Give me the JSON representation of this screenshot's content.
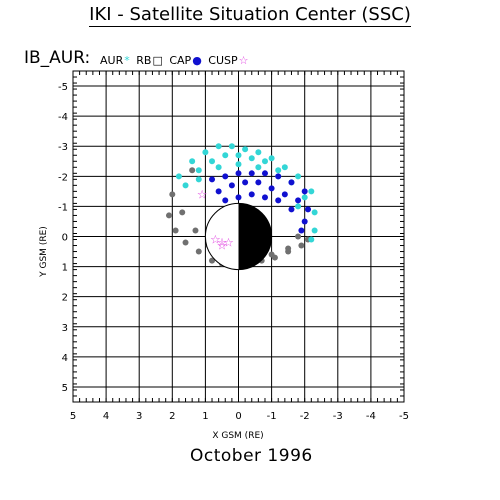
{
  "header": {
    "title": "IKI - Satellite Situation Center (SSC)",
    "plot_name": "IB_AUR:",
    "date": "October   1996"
  },
  "legend": [
    {
      "label": "AUR",
      "symbol": "*",
      "color": "#33d6d6"
    },
    {
      "label": "RB",
      "symbol": "□",
      "color": "#000000"
    },
    {
      "label": "CAP",
      "symbol": "●",
      "color": "#1010d0"
    },
    {
      "label": "CUSP",
      "symbol": "☆",
      "color": "#e040e0"
    }
  ],
  "chart_data": {
    "type": "scatter",
    "title": "IKI - Satellite Situation Center (SSC)",
    "xlabel": "X GSM (RE)",
    "ylabel": "Y GSM (RE)",
    "xlim": [
      5,
      -5
    ],
    "ylim": [
      -5.5,
      5.5
    ],
    "x_ticks": [
      5,
      4,
      3,
      2,
      1,
      0,
      -1,
      -2,
      -3,
      -4,
      -5
    ],
    "x_tick_labels": [
      "5",
      "4",
      "3",
      "2",
      "1",
      "0",
      "-1",
      "-2",
      "-3",
      "-4",
      "-5"
    ],
    "y_ticks": [
      -5,
      -4,
      -3,
      -2,
      -1,
      0,
      1,
      2,
      3,
      4,
      5
    ],
    "y_tick_labels": [
      "-5",
      "-4",
      "-3",
      "-2",
      "-1",
      "0",
      "1",
      "2",
      "3",
      "4",
      "5"
    ],
    "grid": true,
    "earth_radius": 1,
    "series": [
      {
        "name": "AUR",
        "color": "#33d6d6",
        "marker": "dot",
        "x": [
          1.8,
          1.4,
          1.0,
          0.6,
          0.2,
          -0.2,
          -0.6,
          -1.0,
          -1.4,
          -1.8,
          -2.2,
          -2.3,
          -2.3,
          1.6,
          1.2,
          0.8,
          0.4,
          0.0,
          -0.4,
          -0.8,
          -1.2,
          -1.6,
          -2.0,
          1.2,
          0.6,
          0.0,
          -0.6,
          -1.2,
          -1.8,
          -2.2
        ],
        "y": [
          -2.0,
          -2.5,
          -2.8,
          -3.0,
          -3.0,
          -2.9,
          -2.8,
          -2.6,
          -2.3,
          -2.0,
          -1.5,
          -0.8,
          -0.2,
          -1.7,
          -2.2,
          -2.5,
          -2.7,
          -2.7,
          -2.6,
          -2.5,
          -2.2,
          -1.8,
          -1.3,
          -1.9,
          -2.3,
          -2.4,
          -2.3,
          -2.0,
          -1.0,
          0.1
        ]
      },
      {
        "name": "RB",
        "color": "#707070",
        "marker": "dot",
        "x": [
          1.4,
          2.0,
          2.1,
          1.9,
          1.6,
          1.2,
          0.8,
          0.5,
          0.1,
          -0.3,
          -0.7,
          -1.1,
          -1.5,
          -1.9,
          -2.1,
          1.7,
          1.3,
          0.9,
          0.4,
          0.0,
          -0.5,
          -1.0,
          -1.5,
          -1.8
        ],
        "y": [
          -2.2,
          -1.4,
          -0.7,
          -0.2,
          0.2,
          0.5,
          0.8,
          0.9,
          0.9,
          0.9,
          0.8,
          0.7,
          0.5,
          0.3,
          0.1,
          -0.8,
          -0.2,
          0.3,
          0.6,
          0.7,
          0.7,
          0.6,
          0.4,
          0.0
        ]
      },
      {
        "name": "CAP",
        "color": "#1010d0",
        "marker": "dot",
        "x": [
          0.8,
          0.4,
          0.0,
          -0.4,
          -0.8,
          -1.2,
          -1.6,
          -2.0,
          -2.1,
          0.6,
          0.2,
          -0.2,
          -0.6,
          -1.0,
          -1.4,
          -1.8,
          -2.0,
          0.4,
          0.0,
          -0.4,
          -0.8,
          -1.2,
          -1.6,
          -1.9
        ],
        "y": [
          -1.9,
          -2.0,
          -2.1,
          -2.1,
          -2.1,
          -2.0,
          -1.8,
          -1.5,
          -0.9,
          -1.5,
          -1.7,
          -1.8,
          -1.8,
          -1.6,
          -1.4,
          -1.2,
          -0.5,
          -1.2,
          -1.3,
          -1.4,
          -1.3,
          -1.2,
          -0.9,
          -0.2
        ]
      },
      {
        "name": "CUSP",
        "color": "#e040e0",
        "marker": "star",
        "x": [
          1.1,
          0.7,
          0.5,
          0.3,
          0.5
        ],
        "y": [
          -1.4,
          0.1,
          0.2,
          0.2,
          0.3
        ]
      }
    ]
  }
}
